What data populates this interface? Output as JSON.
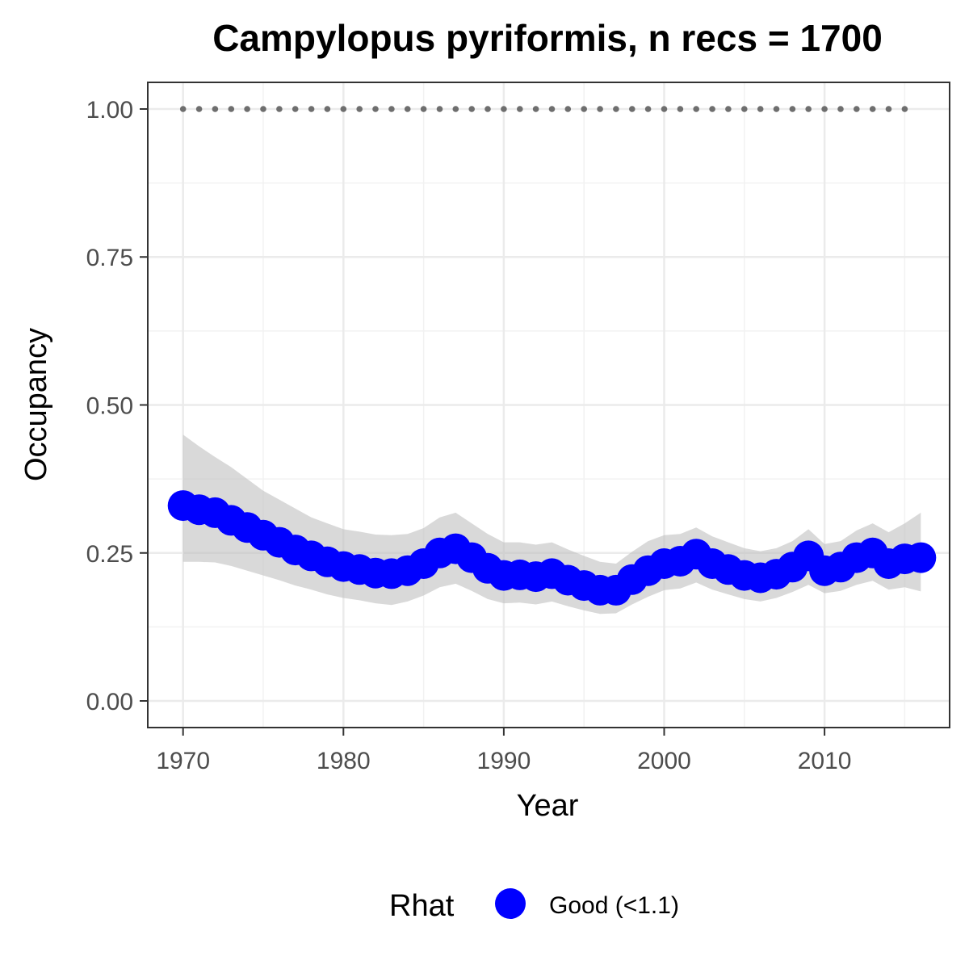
{
  "chart_data": {
    "type": "line",
    "title": "Campylopus pyriformis, n recs = 1700",
    "xlabel": "Year",
    "ylabel": "Occupancy",
    "xlim": [
      1967.8,
      2017.8
    ],
    "ylim": [
      -0.045,
      1.045
    ],
    "x_ticks": [
      1970,
      1980,
      1990,
      2000,
      2010
    ],
    "y_ticks": [
      0,
      0.25,
      0.5,
      0.75,
      1
    ],
    "y_tick_labels": [
      "0.00",
      "0.25",
      "0.50",
      "0.75",
      "1.00"
    ],
    "grid": true,
    "legend": {
      "position": "bottom",
      "title": "Rhat",
      "entries": [
        {
          "label": "Good (<1.1)",
          "color": "#0000ff"
        }
      ]
    },
    "series": [
      {
        "name": "Good (<1.1)",
        "color": "#0000ff",
        "x": [
          1970,
          1971,
          1972,
          1973,
          1974,
          1975,
          1976,
          1977,
          1978,
          1979,
          1980,
          1981,
          1982,
          1983,
          1984,
          1985,
          1986,
          1987,
          1988,
          1989,
          1990,
          1991,
          1992,
          1993,
          1994,
          1995,
          1996,
          1997,
          1998,
          1999,
          2000,
          2001,
          2002,
          2003,
          2004,
          2005,
          2006,
          2007,
          2008,
          2009,
          2010,
          2011,
          2012,
          2013,
          2014,
          2015,
          2016
        ],
        "y": [
          0.33,
          0.323,
          0.318,
          0.305,
          0.293,
          0.28,
          0.268,
          0.255,
          0.245,
          0.235,
          0.227,
          0.222,
          0.216,
          0.215,
          0.22,
          0.232,
          0.25,
          0.257,
          0.242,
          0.224,
          0.212,
          0.213,
          0.21,
          0.215,
          0.204,
          0.195,
          0.187,
          0.187,
          0.205,
          0.22,
          0.232,
          0.236,
          0.248,
          0.232,
          0.222,
          0.212,
          0.208,
          0.214,
          0.226,
          0.245,
          0.22,
          0.226,
          0.242,
          0.25,
          0.232,
          0.24,
          0.242
        ],
        "lower": [
          0.235,
          0.235,
          0.234,
          0.228,
          0.22,
          0.212,
          0.204,
          0.195,
          0.188,
          0.18,
          0.174,
          0.17,
          0.165,
          0.162,
          0.168,
          0.178,
          0.192,
          0.198,
          0.186,
          0.172,
          0.165,
          0.166,
          0.163,
          0.168,
          0.16,
          0.153,
          0.147,
          0.148,
          0.163,
          0.176,
          0.187,
          0.19,
          0.2,
          0.188,
          0.18,
          0.172,
          0.168,
          0.174,
          0.184,
          0.196,
          0.182,
          0.186,
          0.196,
          0.203,
          0.188,
          0.192,
          0.185
        ],
        "upper": [
          0.45,
          0.43,
          0.412,
          0.395,
          0.375,
          0.355,
          0.34,
          0.325,
          0.31,
          0.3,
          0.29,
          0.286,
          0.281,
          0.28,
          0.282,
          0.292,
          0.31,
          0.318,
          0.3,
          0.282,
          0.268,
          0.268,
          0.264,
          0.268,
          0.256,
          0.245,
          0.235,
          0.232,
          0.252,
          0.27,
          0.28,
          0.282,
          0.293,
          0.278,
          0.268,
          0.258,
          0.253,
          0.258,
          0.27,
          0.29,
          0.265,
          0.27,
          0.288,
          0.3,
          0.285,
          0.3,
          0.318
        ]
      },
      {
        "name": "",
        "style": "dotted",
        "color": "#6e6e6e",
        "x": [
          1970,
          1971,
          1972,
          1973,
          1974,
          1975,
          1976,
          1977,
          1978,
          1979,
          1980,
          1981,
          1982,
          1983,
          1984,
          1985,
          1986,
          1987,
          1988,
          1989,
          1990,
          1991,
          1992,
          1993,
          1994,
          1995,
          1996,
          1997,
          1998,
          1999,
          2000,
          2001,
          2002,
          2003,
          2004,
          2005,
          2006,
          2007,
          2008,
          2009,
          2010,
          2011,
          2012,
          2013,
          2014,
          2015
        ],
        "y": [
          1,
          1,
          1,
          1,
          1,
          1,
          1,
          1,
          1,
          1,
          1,
          1,
          1,
          1,
          1,
          1,
          1,
          1,
          1,
          1,
          1,
          1,
          1,
          1,
          1,
          1,
          1,
          1,
          1,
          1,
          1,
          1,
          1,
          1,
          1,
          1,
          1,
          1,
          1,
          1,
          1,
          1,
          1,
          1,
          1,
          1
        ]
      }
    ]
  }
}
